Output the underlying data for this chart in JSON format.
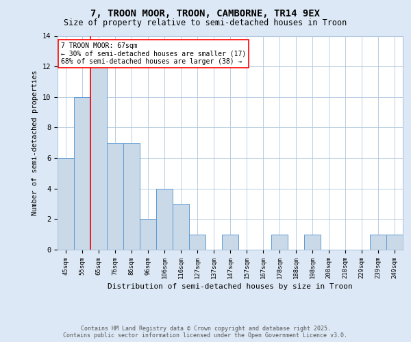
{
  "title_line1": "7, TROON MOOR, TROON, CAMBORNE, TR14 9EX",
  "title_line2": "Size of property relative to semi-detached houses in Troon",
  "xlabel": "Distribution of semi-detached houses by size in Troon",
  "ylabel": "Number of semi-detached properties",
  "categories": [
    "45sqm",
    "55sqm",
    "65sqm",
    "76sqm",
    "86sqm",
    "96sqm",
    "106sqm",
    "116sqm",
    "127sqm",
    "137sqm",
    "147sqm",
    "157sqm",
    "167sqm",
    "178sqm",
    "188sqm",
    "198sqm",
    "208sqm",
    "218sqm",
    "229sqm",
    "239sqm",
    "249sqm"
  ],
  "values": [
    6,
    10,
    12,
    7,
    7,
    2,
    4,
    3,
    1,
    0,
    1,
    0,
    0,
    1,
    0,
    1,
    0,
    0,
    0,
    1,
    1
  ],
  "bar_color": "#c9d9e8",
  "bar_edge_color": "#5b9bd5",
  "ylim": [
    0,
    14
  ],
  "yticks": [
    0,
    2,
    4,
    6,
    8,
    10,
    12,
    14
  ],
  "red_line_x": 1.5,
  "annotation_title": "7 TROON MOOR: 67sqm",
  "annotation_line2": "← 30% of semi-detached houses are smaller (17)",
  "annotation_line3": "68% of semi-detached houses are larger (38) →",
  "footer_line1": "Contains HM Land Registry data © Crown copyright and database right 2025.",
  "footer_line2": "Contains public sector information licensed under the Open Government Licence v3.0.",
  "background_color": "#dce8f5",
  "plot_bg_color": "#ffffff",
  "grid_color": "#aec6dd"
}
